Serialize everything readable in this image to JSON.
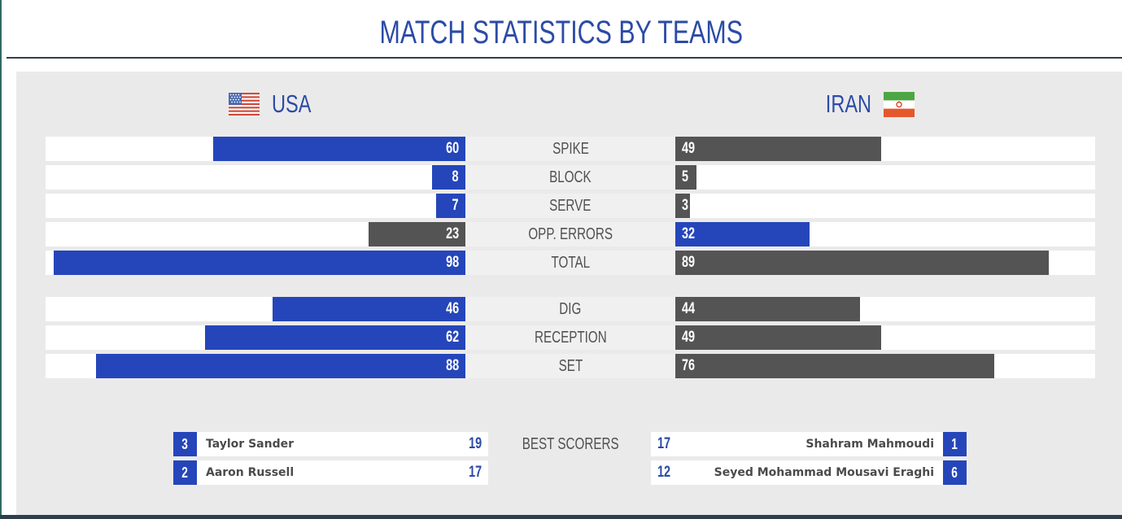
{
  "header": {
    "title": "MATCH STATISTICS BY TEAMS"
  },
  "teams": {
    "left": {
      "name": "USA",
      "flag_icon": "usa-flag-icon"
    },
    "right": {
      "name": "IRAN",
      "flag_icon": "iran-flag-icon"
    }
  },
  "stats": {
    "scale_max": 100,
    "groups": [
      {
        "rows": [
          {
            "label": "SPIKE",
            "left": {
              "value": 60,
              "color": "blue"
            },
            "right": {
              "value": 49,
              "color": "gray"
            }
          },
          {
            "label": "BLOCK",
            "left": {
              "value": 8,
              "color": "blue"
            },
            "right": {
              "value": 5,
              "color": "gray"
            }
          },
          {
            "label": "SERVE",
            "left": {
              "value": 7,
              "color": "blue"
            },
            "right": {
              "value": 3,
              "color": "gray"
            }
          },
          {
            "label": "OPP. ERRORS",
            "left": {
              "value": 23,
              "color": "gray"
            },
            "right": {
              "value": 32,
              "color": "blue"
            }
          },
          {
            "label": "TOTAL",
            "left": {
              "value": 98,
              "color": "blue"
            },
            "right": {
              "value": 89,
              "color": "gray"
            }
          }
        ]
      },
      {
        "rows": [
          {
            "label": "DIG",
            "left": {
              "value": 46,
              "color": "blue"
            },
            "right": {
              "value": 44,
              "color": "gray"
            }
          },
          {
            "label": "RECEPTION",
            "left": {
              "value": 62,
              "color": "blue"
            },
            "right": {
              "value": 49,
              "color": "gray"
            }
          },
          {
            "label": "SET",
            "left": {
              "value": 88,
              "color": "blue"
            },
            "right": {
              "value": 76,
              "color": "gray"
            }
          }
        ]
      }
    ]
  },
  "best_scorers": {
    "label": "BEST SCORERS",
    "left": [
      {
        "jersey": "3",
        "name": "Taylor Sander",
        "points": "19"
      },
      {
        "jersey": "2",
        "name": "Aaron Russell",
        "points": "17"
      }
    ],
    "right": [
      {
        "jersey": "1",
        "name": "Shahram Mahmoudi",
        "points": "17"
      },
      {
        "jersey": "6",
        "name": "Seyed Mohammad Mousavi Eraghi",
        "points": "12"
      }
    ]
  },
  "colors": {
    "bar_blue": "#2546ba",
    "bar_gray": "#545454",
    "text_blue": "#2b4ba6",
    "label_gray": "#515151",
    "panel_bg": "#ebeaeb",
    "underline_navy": "#2f3e4e",
    "left_edge_teal": "#2f6a64"
  },
  "chart_data": {
    "type": "bar",
    "title": "MATCH STATISTICS BY TEAMS",
    "orientation": "horizontal-mirrored",
    "categories": [
      "SPIKE",
      "BLOCK",
      "SERVE",
      "OPP. ERRORS",
      "TOTAL",
      "DIG",
      "RECEPTION",
      "SET"
    ],
    "series": [
      {
        "name": "USA",
        "values": [
          60,
          8,
          7,
          23,
          98,
          46,
          62,
          88
        ]
      },
      {
        "name": "IRAN",
        "values": [
          49,
          5,
          3,
          32,
          89,
          44,
          49,
          76
        ]
      }
    ],
    "axis_range": [
      0,
      100
    ],
    "grid": false,
    "legend_position": "top (team headers with flags)",
    "annotations": {
      "best_scorers": {
        "USA": [
          {
            "jersey": 3,
            "name": "Taylor Sander",
            "points": 19
          },
          {
            "jersey": 2,
            "name": "Aaron Russell",
            "points": 17
          }
        ],
        "IRAN": [
          {
            "jersey": 1,
            "name": "Shahram Mahmoudi",
            "points": 17
          },
          {
            "jersey": 6,
            "name": "Seyed Mohammad Mousavi Eraghi",
            "points": 12
          }
        ]
      }
    }
  }
}
